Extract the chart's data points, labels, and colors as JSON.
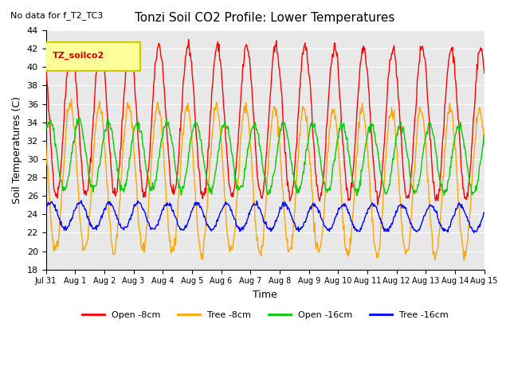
{
  "title": "Tonzi Soil CO2 Profile: Lower Temperatures",
  "no_data_text": "No data for f_T2_TC3",
  "legend_label": "TZ_soilco2",
  "xlabel": "Time",
  "ylabel": "Soil Temperatures (C)",
  "ylim": [
    18,
    44
  ],
  "yticks": [
    18,
    20,
    22,
    24,
    26,
    28,
    30,
    32,
    34,
    36,
    38,
    40,
    42,
    44
  ],
  "xtick_labels": [
    "Jul 31",
    "Aug 1",
    "Aug 2",
    "Aug 3",
    "Aug 4",
    "Aug 5",
    "Aug 6",
    "Aug 7",
    "Aug 8",
    "Aug 9",
    "Aug 10",
    "Aug 11",
    "Aug 12",
    "Aug 13",
    "Aug 14",
    "Aug 15"
  ],
  "series": {
    "open_8cm": {
      "color": "#ff0000",
      "label": "Open -8cm"
    },
    "tree_8cm": {
      "color": "#ffa500",
      "label": "Tree -8cm"
    },
    "open_16cm": {
      "color": "#00cc00",
      "label": "Open -16cm"
    },
    "tree_16cm": {
      "color": "#0000ff",
      "label": "Tree -16cm"
    }
  },
  "days": 15,
  "points_per_day": 48,
  "plot_bg_color": "#e8e8e8",
  "fig_bg_color": "#ffffff",
  "grid_color": "#ffffff",
  "legend_box_color": "#ffff99",
  "legend_box_edge": "#cccc00"
}
